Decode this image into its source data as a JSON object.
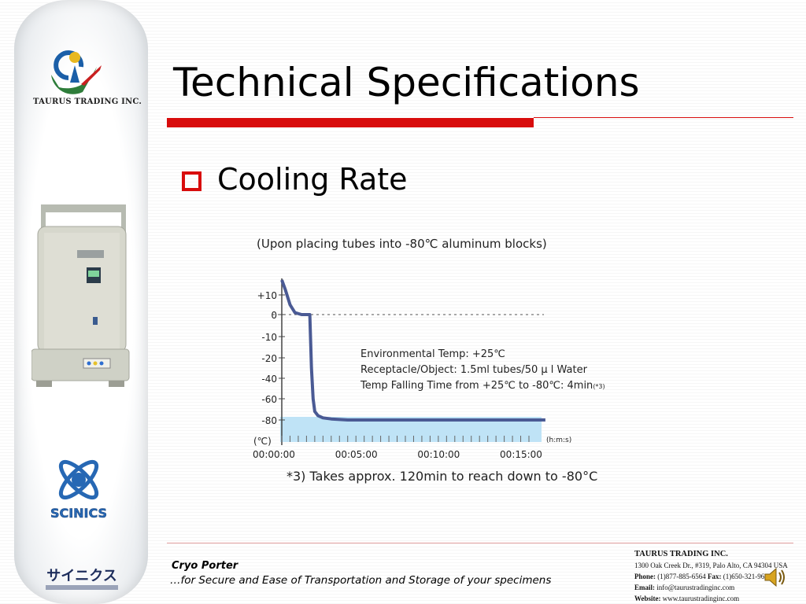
{
  "sidebar": {
    "logo_text": "TAURUS TRADING INC.",
    "scinics_logo_text": "SCINICS",
    "jp_logo_text": "サイニクス"
  },
  "slide": {
    "title": "Technical Specifications",
    "bullet": "Cooling Rate"
  },
  "chart_data": {
    "type": "line",
    "title": "(Upon placing tubes into -80℃ aluminum blocks)",
    "xlabel": "(h:m:s)",
    "ylabel": "(℃)",
    "y_ticks": [
      "+10",
      "0",
      "-10",
      "-20",
      "-40",
      "-60",
      "-80"
    ],
    "x_ticks": [
      "00:00:00",
      "00:05:00",
      "00:10:00",
      "00:15:00"
    ],
    "annotations": [
      "Environmental Temp: +25℃",
      "Receptacle/Object: 1.5ml tubes/50 μ l Water",
      "Temp Falling Time from +25℃ to -80℃: 4min"
    ],
    "annotation_note_marker": "(*3)",
    "footnote": "*3) Takes approx. 120min to reach down to -80°C",
    "series": [
      {
        "x_minutes": [
          0.0,
          0.2,
          0.5,
          0.8,
          1.2,
          1.5,
          1.7,
          1.8,
          1.9,
          2.0,
          2.2,
          2.5,
          3.0,
          4.0,
          6.0,
          10.0,
          15.0,
          16.0
        ],
        "y": [
          15,
          12,
          5,
          1,
          0,
          0,
          0,
          -30,
          -60,
          -72,
          -76,
          -78,
          -79,
          -80,
          -80,
          -80,
          -80,
          -80
        ]
      }
    ],
    "colors": {
      "line": "#4a5a94",
      "band": "#bfe3f6"
    }
  },
  "footer": {
    "product": "Cryo Porter",
    "tagline": "…for Secure and Ease of Transportation and Storage of your specimens"
  },
  "company": {
    "name": "TAURUS TRADING INC.",
    "address": "1300 Oak Creek Dr., #319, Palo Alto, CA 94304  USA",
    "phone_label": "Phone:",
    "phone": "(1)877-885-6564",
    "fax_label": "Fax:",
    "fax": "(1)650-321-96",
    "email_label": "Email:",
    "email": "info@taurustradinginc.com",
    "website_label": "Website:",
    "website": "www.taurustradinginc.com"
  }
}
